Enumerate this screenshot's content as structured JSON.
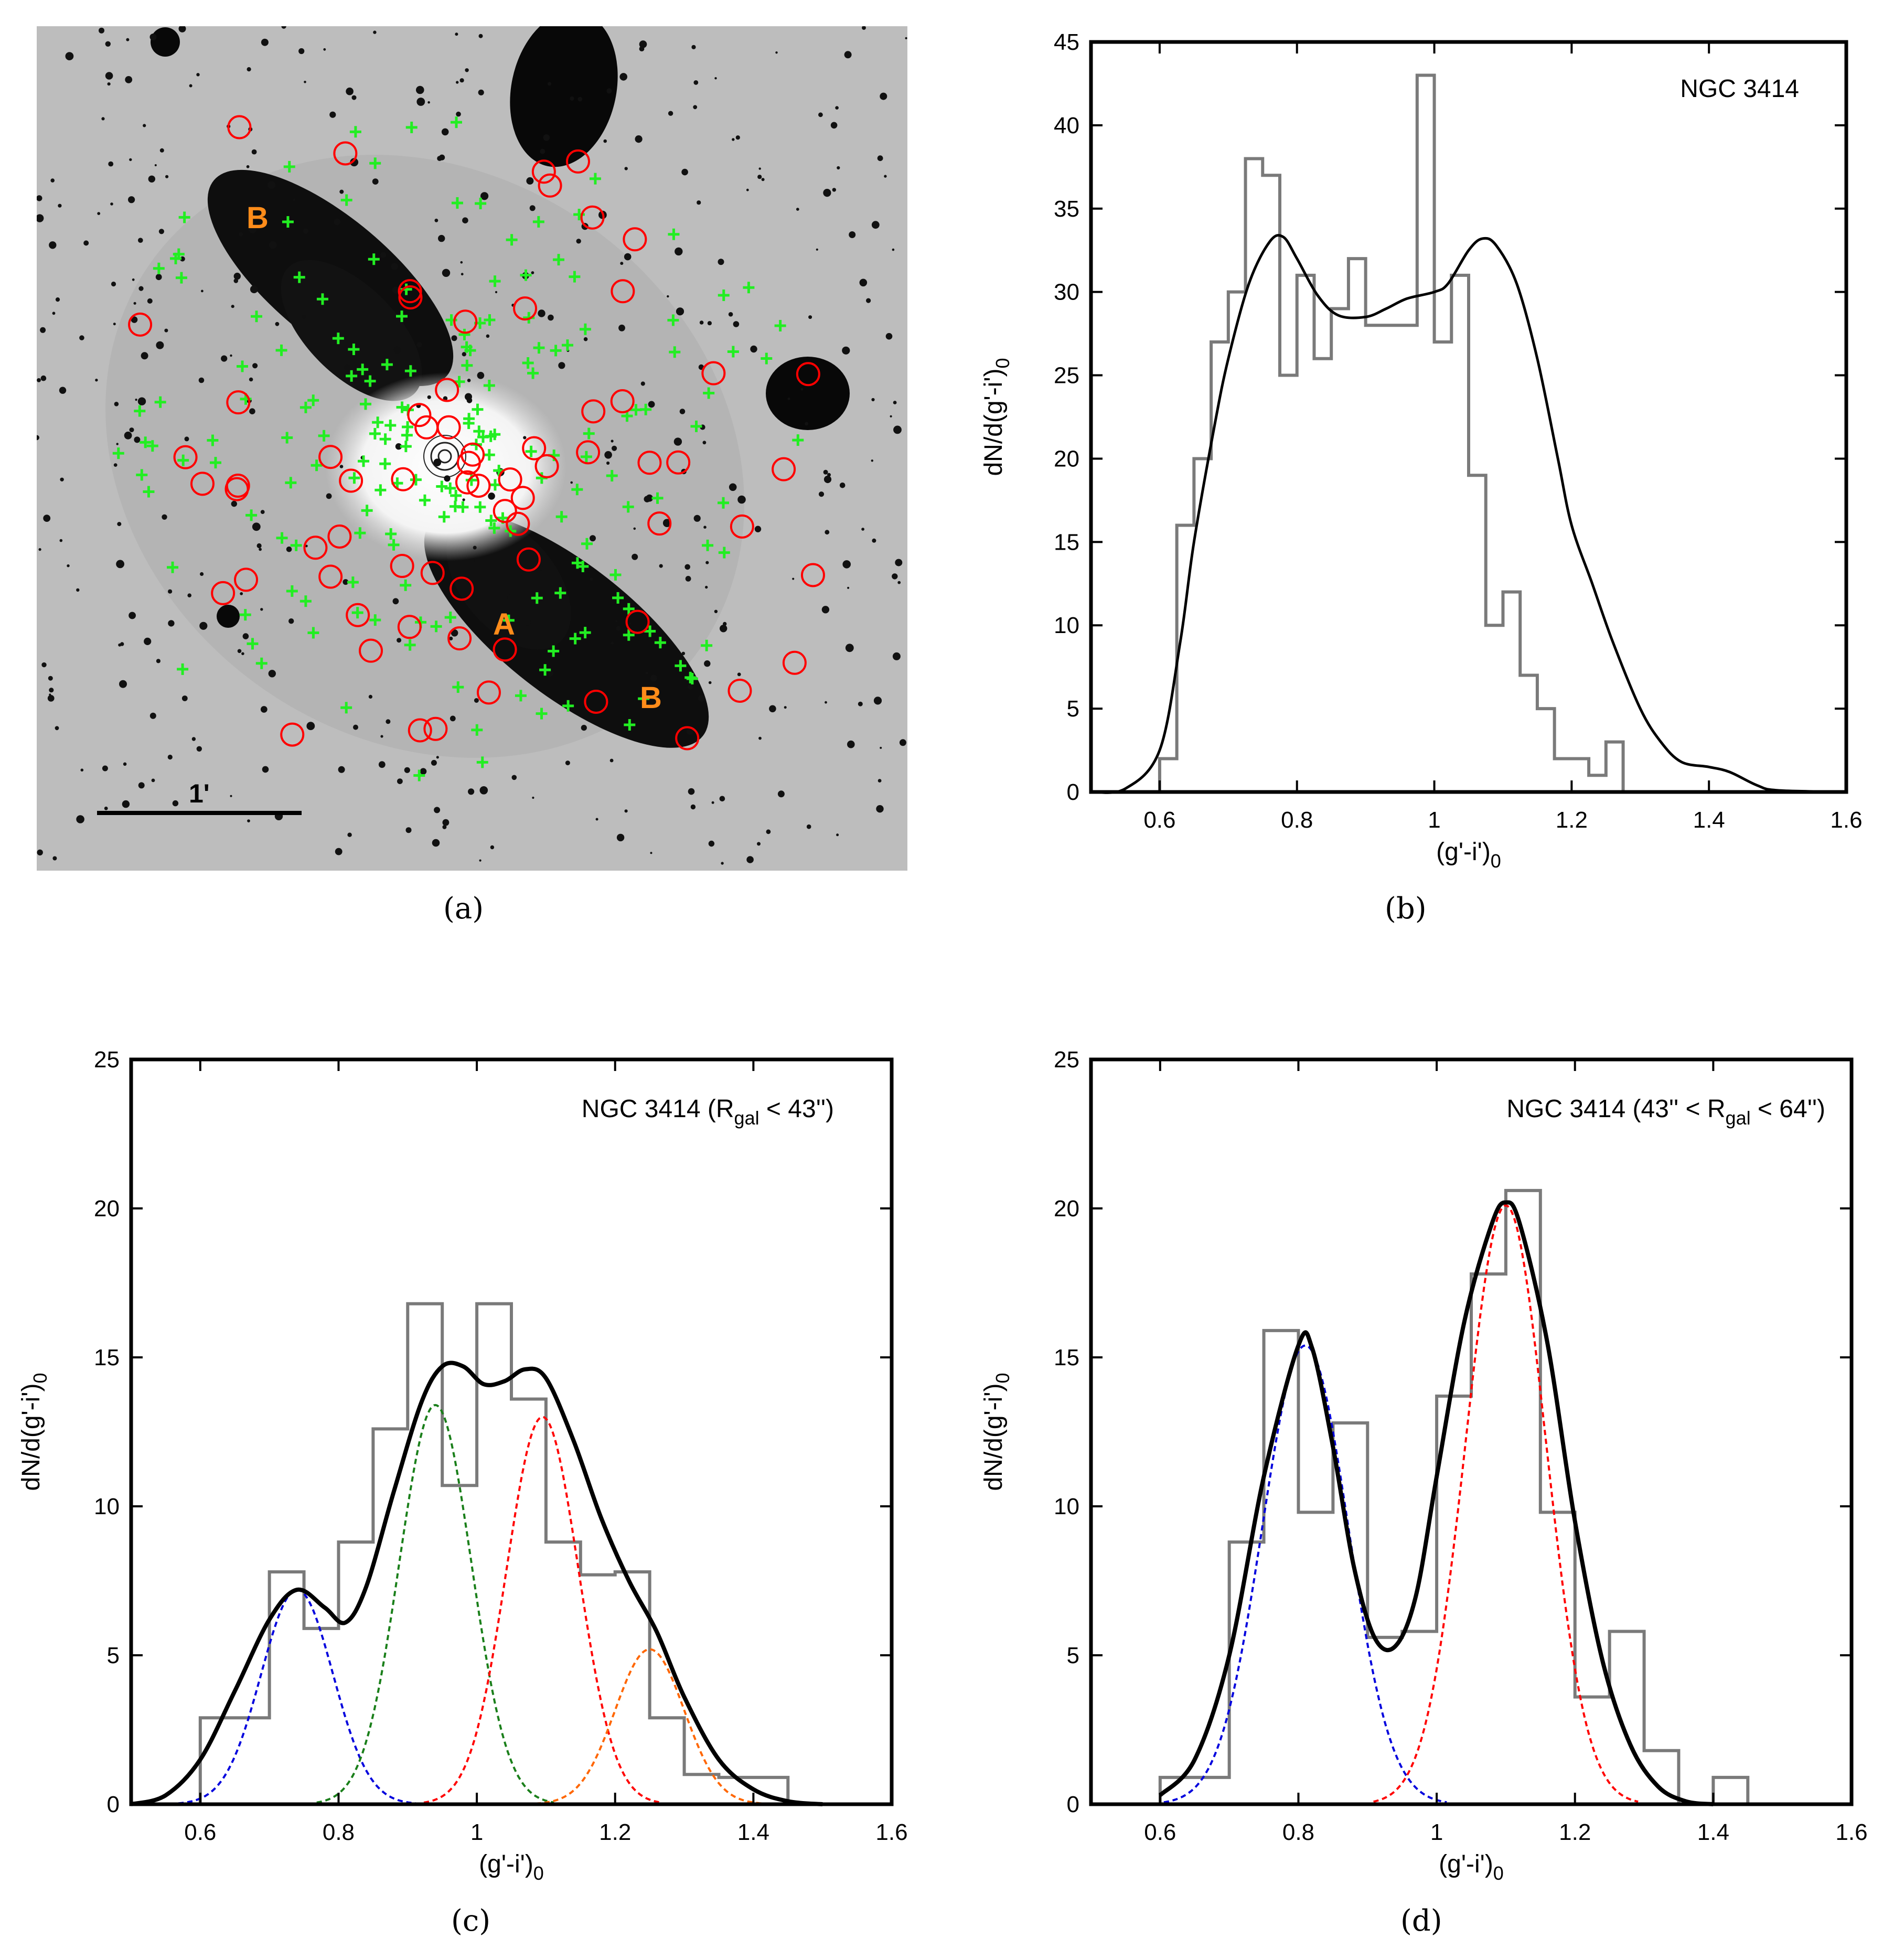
{
  "captions": {
    "a": "(a)",
    "b": "(b)",
    "c": "(c)",
    "d": "(d)"
  },
  "colors": {
    "circle": "#ff0000",
    "cross": "#22ee22",
    "label": "#ff8c1a",
    "hist": "#7a7a7a",
    "fit": "#000000"
  },
  "image_panel": {
    "labels": {
      "a": "A",
      "b_upper": "B",
      "b_lower": "B"
    },
    "scale_bar": "1'"
  },
  "chart_data": [
    {
      "panel": "b",
      "type": "histogram+line",
      "title": "NGC 3414",
      "xlabel": "(g'-i')0",
      "ylabel": "dN/d(g'-i')0",
      "xlim": [
        0.5,
        1.6
      ],
      "ylim": [
        0,
        45
      ],
      "xticks": [
        "0.6",
        "0.8",
        "1",
        "1.2",
        "1.4",
        "1.6"
      ],
      "yticks": [
        "0",
        "5",
        "10",
        "15",
        "20",
        "25",
        "30",
        "35",
        "40",
        "45"
      ],
      "bin_edges": [
        0.6,
        0.625,
        0.65,
        0.675,
        0.7,
        0.725,
        0.75,
        0.775,
        0.8,
        0.825,
        0.85,
        0.875,
        0.9,
        0.925,
        0.95,
        0.975,
        1.0,
        1.025,
        1.05,
        1.075,
        1.1,
        1.125,
        1.15,
        1.175,
        1.2,
        1.225,
        1.25,
        1.275,
        1.3,
        1.325,
        1.35,
        1.375,
        1.4,
        1.425,
        1.45
      ],
      "hist_values": [
        2,
        16,
        20,
        27,
        30,
        38,
        37,
        25,
        31,
        26,
        29,
        32,
        28,
        28,
        28,
        43,
        27,
        31,
        19,
        10,
        12,
        7,
        5,
        2,
        2,
        1,
        3,
        0,
        0,
        0,
        0,
        0,
        0,
        0
      ],
      "curve": [
        [
          0.5,
          0
        ],
        [
          0.55,
          0.2
        ],
        [
          0.6,
          2.5
        ],
        [
          0.63,
          9
        ],
        [
          0.65,
          15
        ],
        [
          0.68,
          22
        ],
        [
          0.7,
          26
        ],
        [
          0.73,
          30.5
        ],
        [
          0.76,
          33
        ],
        [
          0.78,
          33.3
        ],
        [
          0.8,
          32
        ],
        [
          0.83,
          29.8
        ],
        [
          0.86,
          28.6
        ],
        [
          0.9,
          28.5
        ],
        [
          0.93,
          29
        ],
        [
          0.96,
          29.6
        ],
        [
          1.0,
          30
        ],
        [
          1.02,
          30.5
        ],
        [
          1.05,
          32.5
        ],
        [
          1.07,
          33.2
        ],
        [
          1.09,
          32.8
        ],
        [
          1.12,
          30.5
        ],
        [
          1.15,
          26
        ],
        [
          1.18,
          20
        ],
        [
          1.2,
          16
        ],
        [
          1.23,
          12.5
        ],
        [
          1.26,
          9
        ],
        [
          1.3,
          5
        ],
        [
          1.33,
          3
        ],
        [
          1.36,
          1.8
        ],
        [
          1.4,
          1.5
        ],
        [
          1.43,
          1.2
        ],
        [
          1.47,
          0.4
        ],
        [
          1.5,
          0.1
        ],
        [
          1.6,
          0
        ]
      ]
    },
    {
      "panel": "c",
      "type": "histogram+line",
      "title": "NGC 3414 (R",
      "title_sub": "gal",
      "title_end": " < 43'')",
      "xlabel": "(g'-i')0",
      "ylabel": "dN/d(g'-i')0",
      "xlim": [
        0.5,
        1.6
      ],
      "ylim": [
        0,
        25
      ],
      "xticks": [
        "0.6",
        "0.8",
        "1",
        "1.2",
        "1.4",
        "1.6"
      ],
      "yticks": [
        "0",
        "5",
        "10",
        "15",
        "20",
        "25"
      ],
      "bin_edges": [
        0.6,
        0.65,
        0.7,
        0.75,
        0.8,
        0.85,
        0.9,
        0.95,
        1.0,
        1.05,
        1.1,
        1.15,
        1.2,
        1.25,
        1.3,
        1.35,
        1.4,
        1.45
      ],
      "hist_values": [
        2.9,
        2.9,
        7.8,
        5.9,
        8.8,
        12.6,
        16.8,
        10.7,
        16.8,
        13.6,
        8.8,
        7.7,
        7.8,
        2.9,
        1.0,
        0.9,
        0.9
      ],
      "curve": [
        [
          0.5,
          0
        ],
        [
          0.55,
          0.3
        ],
        [
          0.6,
          1.5
        ],
        [
          0.65,
          3.8
        ],
        [
          0.7,
          6.2
        ],
        [
          0.74,
          7.2
        ],
        [
          0.78,
          6.6
        ],
        [
          0.81,
          6.1
        ],
        [
          0.84,
          7.3
        ],
        [
          0.88,
          10.5
        ],
        [
          0.92,
          13.5
        ],
        [
          0.95,
          14.7
        ],
        [
          0.98,
          14.7
        ],
        [
          1.01,
          14.1
        ],
        [
          1.04,
          14.2
        ],
        [
          1.07,
          14.6
        ],
        [
          1.1,
          14.3
        ],
        [
          1.14,
          12.2
        ],
        [
          1.18,
          9.6
        ],
        [
          1.22,
          7.5
        ],
        [
          1.26,
          5.8
        ],
        [
          1.3,
          3.6
        ],
        [
          1.35,
          1.5
        ],
        [
          1.4,
          0.5
        ],
        [
          1.45,
          0.1
        ],
        [
          1.5,
          0
        ]
      ],
      "gaussians": [
        {
          "name": "blue",
          "color": "#0000dd",
          "mu": 0.74,
          "sigma": 0.052,
          "amp": 7.2
        },
        {
          "name": "green",
          "color": "#1a7f1a",
          "mu": 0.94,
          "sigma": 0.052,
          "amp": 13.4
        },
        {
          "name": "red",
          "color": "#ff0000",
          "mu": 1.095,
          "sigma": 0.052,
          "amp": 13.0
        },
        {
          "name": "orange",
          "color": "#ff6600",
          "mu": 1.25,
          "sigma": 0.05,
          "amp": 5.2
        }
      ]
    },
    {
      "panel": "d",
      "type": "histogram+line",
      "title": "NGC 3414 (43'' < R",
      "title_sub": "gal",
      "title_end": " < 64'')",
      "xlabel": "(g'-i')0",
      "ylabel": "dN/d(g'-i')0",
      "xlim": [
        0.5,
        1.6
      ],
      "ylim": [
        0,
        25
      ],
      "xticks": [
        "0.6",
        "0.8",
        "1",
        "1.2",
        "1.4",
        "1.6"
      ],
      "yticks": [
        "0",
        "5",
        "10",
        "15",
        "20",
        "25"
      ],
      "bin_edges": [
        0.6,
        0.65,
        0.7,
        0.75,
        0.8,
        0.85,
        0.9,
        0.95,
        1.0,
        1.05,
        1.1,
        1.15,
        1.2,
        1.25,
        1.3,
        1.35,
        1.4,
        1.45
      ],
      "hist_values": [
        0.9,
        0.9,
        8.8,
        15.9,
        9.8,
        12.8,
        5.6,
        5.8,
        13.7,
        17.8,
        20.6,
        9.8,
        3.6,
        5.8,
        1.8,
        0,
        0.9
      ],
      "curve": [
        [
          0.6,
          0.3
        ],
        [
          0.65,
          1.5
        ],
        [
          0.7,
          5
        ],
        [
          0.75,
          11
        ],
        [
          0.8,
          15.4
        ],
        [
          0.82,
          15.3
        ],
        [
          0.85,
          12
        ],
        [
          0.88,
          8
        ],
        [
          0.91,
          5.6
        ],
        [
          0.94,
          5.3
        ],
        [
          0.97,
          7
        ],
        [
          1.0,
          11
        ],
        [
          1.04,
          16.2
        ],
        [
          1.08,
          19.5
        ],
        [
          1.1,
          20.2
        ],
        [
          1.12,
          19.5
        ],
        [
          1.16,
          15.5
        ],
        [
          1.2,
          9.5
        ],
        [
          1.24,
          4.8
        ],
        [
          1.28,
          2
        ],
        [
          1.32,
          0.6
        ],
        [
          1.36,
          0.1
        ],
        [
          1.4,
          0
        ]
      ],
      "gaussians": [
        {
          "name": "blue",
          "color": "#0000dd",
          "mu": 0.81,
          "sigma": 0.062,
          "amp": 15.4
        },
        {
          "name": "red",
          "color": "#ff0000",
          "mu": 1.1,
          "sigma": 0.058,
          "amp": 20.1
        }
      ]
    }
  ]
}
